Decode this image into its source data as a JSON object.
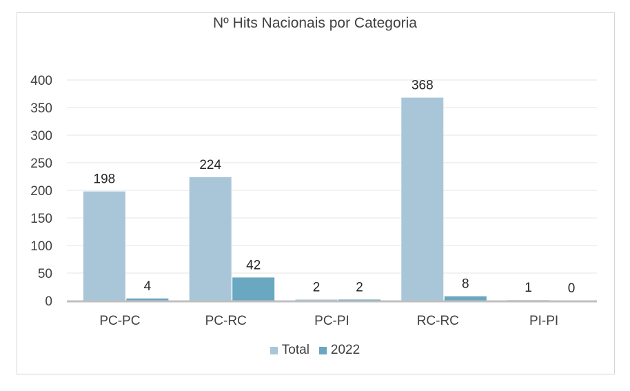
{
  "chart_data": {
    "type": "bar",
    "title": "Nº Hits Nacionais por Categoria",
    "categories": [
      "PC-PC",
      "PC-RC",
      "PC-PI",
      "RC-RC",
      "PI-PI"
    ],
    "series": [
      {
        "name": "Total",
        "values": [
          198,
          224,
          2,
          368,
          1
        ],
        "color": "#a9c6d9"
      },
      {
        "name": "2022",
        "values": [
          4,
          42,
          2,
          8,
          0
        ],
        "color": "#6aa7c1"
      }
    ],
    "yticks": [
      "0",
      "50",
      "100",
      "150",
      "200",
      "250",
      "300",
      "350",
      "400"
    ],
    "ylim": [
      0,
      400
    ],
    "grid": true,
    "legend_position": "bottom"
  }
}
